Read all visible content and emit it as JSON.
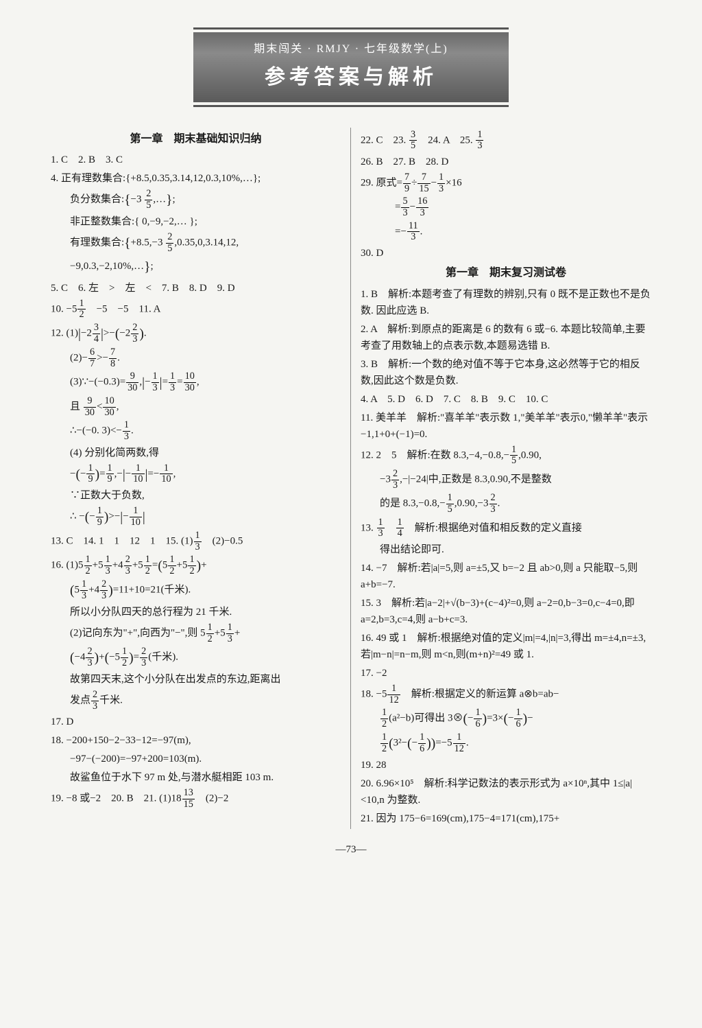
{
  "background_color": "#f5f5f2",
  "text_color": "#1a1a1a",
  "banner": {
    "subtitle": "期末闯关 · RMJY · 七年级数学(上)",
    "title": "参考答案与解析",
    "bg_gradient": [
      "#6a6a6a",
      "#8a8a8a",
      "#5a5a5a"
    ],
    "text_color": "#ffffff",
    "border_color": "#555555"
  },
  "page_number": "—73—",
  "left": {
    "section1_title": "第一章　期末基础知识归纳",
    "l1": "1. C　2. B　3. C",
    "l2": "4. 正有理数集合:{+8.5,0.35,3.14,12,0.3,10%,…};",
    "l3_pre": "负分数集合:",
    "l3_post": ";",
    "l4": "非正整数集合:{ 0,−9,−2,… };",
    "l5_pre": "有理数集合:",
    "l5_mid": "+8.5,−3",
    "l5_post": ",0.35,0,3.14,12,",
    "l6": "−9,0.3,−2,10%,…",
    "l7": "5. C　6. 左　>　左　<　7. B　8. D　9. D",
    "l8_pre": "10. −5",
    "l8_post": "　−5　−5　11. A",
    "l9_pre": "12. (1)",
    "l9_mid": "−2",
    "l9_mid2": ">−",
    "l9_mid3": "−2",
    "l9_post": ".",
    "l10_pre": "(2)−",
    "l10_mid": ">−",
    "l10_post": ".",
    "l11_pre": "(3)∵−(−0.3)=",
    "l11_mid": ",",
    "l11_mid2": "−",
    "l11_mid3": "=",
    "l11_mid4": "=",
    "l11_post": ",",
    "l12_pre": "且 ",
    "l12_mid": "<",
    "l12_post": ",",
    "l13_pre": "∴−(−0. 3)<−",
    "l13_post": ".",
    "l14": "(4) 分别化简两数,得",
    "l15_pre": "−",
    "l15_mid": "−",
    "l15_mid2": "=",
    "l15_mid3": ",−",
    "l15_mid4": "−",
    "l15_mid5": "=−",
    "l15_post": ",",
    "l16": "∵正数大于负数,",
    "l17_pre": "∴ −",
    "l17_mid": "−",
    "l17_mid2": ">−",
    "l17_mid3": "−",
    "l18_pre": "13. C　14. 1　1　12　1　15. (1)",
    "l18_post": "　(2)−0.5",
    "l19_pre": "16. (1)5",
    "l19_a": "+5",
    "l19_b": "+4",
    "l19_c": "+5",
    "l19_d": "=",
    "l19_e": "5",
    "l19_f": "+5",
    "l19_g": "+",
    "l20_pre": "5",
    "l20_a": "+4",
    "l20_b": "=11+10=21(千米).",
    "l21": "所以小分队四天的总行程为 21 千米.",
    "l22_pre": "(2)记向东为\"+\",向西为\"−\",则 5",
    "l22_a": "+5",
    "l22_b": "+",
    "l23_pre": "",
    "l23_a": "−4",
    "l23_b": "+",
    "l23_c": "−5",
    "l23_d": "=",
    "l23_e": "(千米).",
    "l24": "故第四天末,这个小分队在出发点的东边,距离出",
    "l25_pre": "发点",
    "l25_post": "千米.",
    "l26": "17. D",
    "l27": "18. −200+150−2−33−12=−97(m),",
    "l28": "−97−(−200)=−97+200=103(m).",
    "l29": "故鲨鱼位于水下 97 m 处,与潜水艇相距 103 m.",
    "l30_pre": "19. −8 或−2　20. B　21. (1)18",
    "l30_post": "　(2)−2"
  },
  "right": {
    "l1_pre": "22. C　23. ",
    "l1_mid": "　24. A　25. ",
    "l2": "26. B　27. B　28. D",
    "l3_pre": "29. 原式=",
    "l3_a": "÷",
    "l3_b": "−",
    "l3_c": "×16",
    "l4_pre": "=",
    "l4_a": "−",
    "l5_pre": "=−",
    "l5_post": ".",
    "l6": "30. D",
    "section2_title": "第一章　期末复习测试卷",
    "r1": "1. B　解析:本题考查了有理数的辨别,只有 0 既不是正数也不是负数. 因此应选 B.",
    "r2": "2. A　解析:到原点的距离是 6 的数有 6 或−6. 本题比较简单,主要考查了用数轴上的点表示数,本题易选错 B.",
    "r3": "3. B　解析:一个数的绝对值不等于它本身,这必然等于它的相反数,因此这个数是负数.",
    "r4": "4. A　5. D　6. D　7. C　8. B　9. C　10. C",
    "r5": "11. 美羊羊　解析:\"喜羊羊\"表示数 1,\"美羊羊\"表示0,\"懒羊羊\"表示−1,1+0+(−1)=0.",
    "r6_pre": "12. 2　5　解析:在数 8.3,−4,−0.8,−",
    "r6_post": ",0.90,",
    "r7_pre": "−3",
    "r7_post": ",−|−24|中,正数是 8.3,0.90,不是整数",
    "r8_pre": "的是 8.3,−0.8,−",
    "r8_mid": ",0.90,−3",
    "r8_post": ".",
    "r9_pre": "13. ",
    "r9_mid": "　",
    "r9_post": "　解析:根据绝对值和相反数的定义直接",
    "r10": "得出结论即可.",
    "r11": "14. −7　解析:若|a|=5,则 a=±5,又 b=−2 且 ab>0,则 a 只能取−5,则 a+b=−7.",
    "r12": "15. 3　解析:若|a−2|+√(b−3)+(c−4)²=0,则 a−2=0,b−3=0,c−4=0,即 a=2,b=3,c=4,则 a−b+c=3.",
    "r13": "16. 49 或 1　解析:根据绝对值的定义|m|=4,|n|=3,得出 m=±4,n=±3,若|m−n|=n−m,则 m<n,则(m+n)²=49 或 1.",
    "r14": "17. −2",
    "r15_pre": "18. −5",
    "r15_post": "　解析:根据定义的新运算 a⊗b=ab−",
    "r16_pre": "",
    "r16_a": "(a²−b)可得出 3⊗",
    "r16_b": "−",
    "r16_c": "=3×",
    "r16_d": "−",
    "r16_e": "−",
    "r17_pre": "",
    "r17_a": "3²−",
    "r17_b": "−",
    "r17_c": "=−5",
    "r17_post": ".",
    "r18": "19. 28",
    "r19": "20. 6.96×10⁵　解析:科学记数法的表示形式为 a×10ⁿ,其中 1≤|a|<10,n 为整数.",
    "r20": "21. 因为 175−6=169(cm),175−4=171(cm),175+"
  },
  "fractions": {
    "f2_5": {
      "n": "2",
      "d": "5"
    },
    "f1_2": {
      "n": "1",
      "d": "2"
    },
    "f3_4": {
      "n": "3",
      "d": "4"
    },
    "f2_3": {
      "n": "2",
      "d": "3"
    },
    "f6_7": {
      "n": "6",
      "d": "7"
    },
    "f7_8": {
      "n": "7",
      "d": "8"
    },
    "f9_30": {
      "n": "9",
      "d": "30"
    },
    "f1_3": {
      "n": "1",
      "d": "3"
    },
    "f10_30": {
      "n": "10",
      "d": "30"
    },
    "f1_9": {
      "n": "1",
      "d": "9"
    },
    "f1_10": {
      "n": "1",
      "d": "10"
    },
    "f13_15": {
      "n": "13",
      "d": "15"
    },
    "f3_5": {
      "n": "3",
      "d": "5"
    },
    "f7_9": {
      "n": "7",
      "d": "9"
    },
    "f7_15": {
      "n": "7",
      "d": "15"
    },
    "f5_3": {
      "n": "5",
      "d": "3"
    },
    "f16_3": {
      "n": "16",
      "d": "3"
    },
    "f11_3": {
      "n": "11",
      "d": "3"
    },
    "f1_5": {
      "n": "1",
      "d": "5"
    },
    "f1_4": {
      "n": "1",
      "d": "4"
    },
    "f1_12": {
      "n": "1",
      "d": "12"
    },
    "f1_6": {
      "n": "1",
      "d": "6"
    }
  }
}
